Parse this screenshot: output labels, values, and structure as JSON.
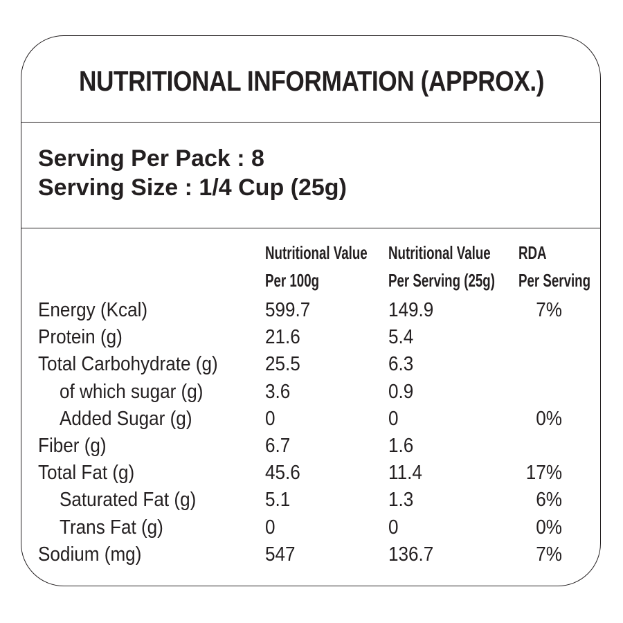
{
  "title": "NUTRITIONAL INFORMATION (APPROX.)",
  "serving": {
    "per_pack_label": "Serving Per Pack : 8",
    "size_label": "Serving Size : 1/4 Cup (25g)"
  },
  "columns": {
    "per100_line1": "Nutritional Value",
    "per100_line2": "Per 100g",
    "perserving_line1": "Nutritional Value",
    "perserving_line2": "Per Serving (25g)",
    "rda_line1": "RDA",
    "rda_line2": "Per Serving"
  },
  "rows": [
    {
      "name": "Energy  (Kcal)",
      "per100": "599.7",
      "serving": "149.9",
      "rda": "7%"
    },
    {
      "name": "Protein (g)",
      "per100": "21.6",
      "serving": "5.4",
      "rda": ""
    },
    {
      "name": "Total Carbohydrate (g)",
      "per100": "25.5",
      "serving": "6.3",
      "rda": ""
    },
    {
      "name": "of which sugar (g)",
      "per100": "3.6",
      "serving": "0.9",
      "rda": ""
    },
    {
      "name": "Added Sugar (g)",
      "per100": "0",
      "serving": "0",
      "rda": "0%"
    },
    {
      "name": "Fiber (g)",
      "per100": "6.7",
      "serving": "1.6",
      "rda": ""
    },
    {
      "name": "Total Fat (g)",
      "per100": "45.6",
      "serving": "11.4",
      "rda": "17%"
    },
    {
      "name": "Saturated Fat (g)",
      "per100": "5.1",
      "serving": "1.3",
      "rda": "6%"
    },
    {
      "name": "Trans Fat (g)",
      "per100": "0",
      "serving": "0",
      "rda": "0%"
    },
    {
      "name": "Sodium (mg)",
      "per100": "547",
      "serving": "136.7",
      "rda": "7%"
    }
  ]
}
